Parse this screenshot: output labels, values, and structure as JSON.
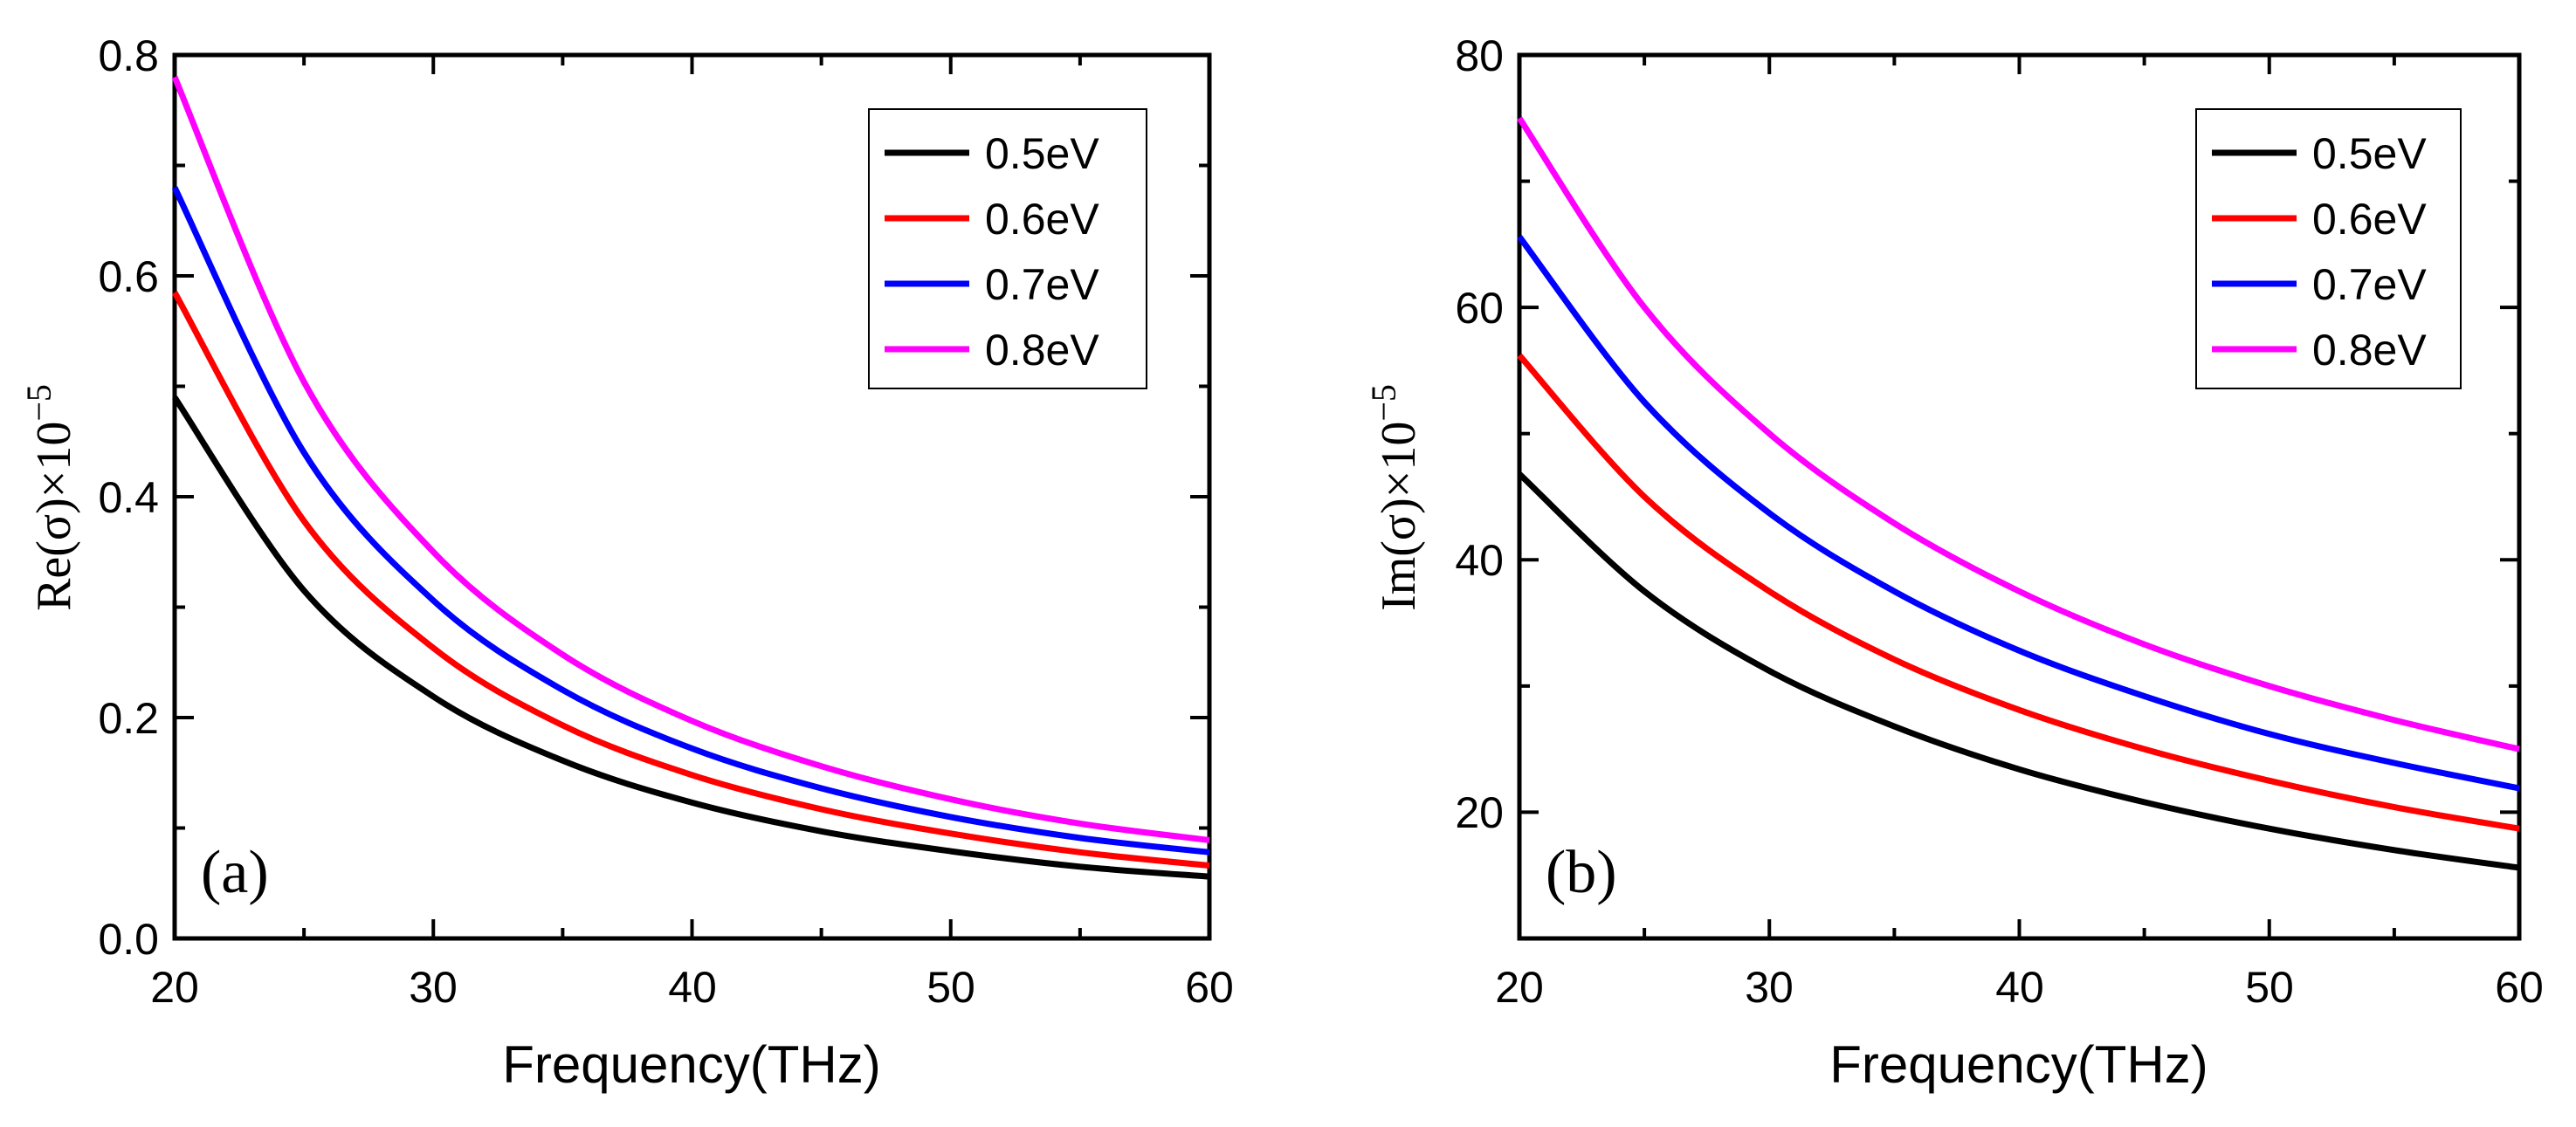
{
  "chart_data": [
    {
      "type": "line",
      "panel_label": "(a)",
      "xlabel": "Frequency(THz)",
      "ylabel_main": "Re(σ)×10",
      "ylabel_exp": "−5",
      "xlim": [
        20,
        60
      ],
      "ylim": [
        0,
        0.8
      ],
      "xticks": [
        "20",
        "30",
        "40",
        "50",
        "60"
      ],
      "yticks": [
        "0.0",
        "0.2",
        "0.4",
        "0.6",
        "0.8"
      ],
      "legend_position": "top-right",
      "x": [
        20,
        25,
        30,
        35,
        40,
        45,
        50,
        55,
        60
      ],
      "series": [
        {
          "name": "0.5eV",
          "color": "#000000",
          "values": [
            0.49,
            0.315,
            0.219,
            0.161,
            0.123,
            0.097,
            0.079,
            0.065,
            0.056
          ]
        },
        {
          "name": "0.6eV",
          "color": "#ff0000",
          "values": [
            0.585,
            0.378,
            0.263,
            0.193,
            0.148,
            0.117,
            0.095,
            0.078,
            0.066
          ]
        },
        {
          "name": "0.7eV",
          "color": "#0000ff",
          "values": [
            0.68,
            0.44,
            0.306,
            0.225,
            0.172,
            0.136,
            0.11,
            0.091,
            0.078
          ]
        },
        {
          "name": "0.8eV",
          "color": "#ff00ff",
          "values": [
            0.78,
            0.504,
            0.35,
            0.257,
            0.197,
            0.156,
            0.126,
            0.104,
            0.089
          ]
        }
      ]
    },
    {
      "type": "line",
      "panel_label": "(b)",
      "xlabel": "Frequency(THz)",
      "ylabel_main": "Im(σ)×10",
      "ylabel_exp": "−5",
      "xlim": [
        20,
        60
      ],
      "ylim": [
        10,
        80
      ],
      "xticks": [
        "20",
        "30",
        "40",
        "50",
        "60"
      ],
      "yticks": [
        "20",
        "40",
        "60",
        "80"
      ],
      "legend_position": "top-right",
      "x": [
        20,
        25,
        30,
        35,
        40,
        45,
        50,
        55,
        60
      ],
      "series": [
        {
          "name": "0.5eV",
          "color": "#000000",
          "values": [
            46.8,
            37.5,
            31.2,
            26.8,
            23.4,
            20.8,
            18.7,
            17.0,
            15.6
          ]
        },
        {
          "name": "0.6eV",
          "color": "#ff0000",
          "values": [
            56.2,
            45.0,
            37.5,
            32.1,
            28.1,
            25.0,
            22.5,
            20.4,
            18.7
          ]
        },
        {
          "name": "0.7eV",
          "color": "#0000ff",
          "values": [
            65.6,
            52.5,
            43.7,
            37.5,
            32.8,
            29.2,
            26.2,
            23.9,
            21.9
          ]
        },
        {
          "name": "0.8eV",
          "color": "#ff00ff",
          "values": [
            75.0,
            60.0,
            50.0,
            42.9,
            37.5,
            33.3,
            30.0,
            27.3,
            25.0
          ]
        }
      ]
    }
  ]
}
